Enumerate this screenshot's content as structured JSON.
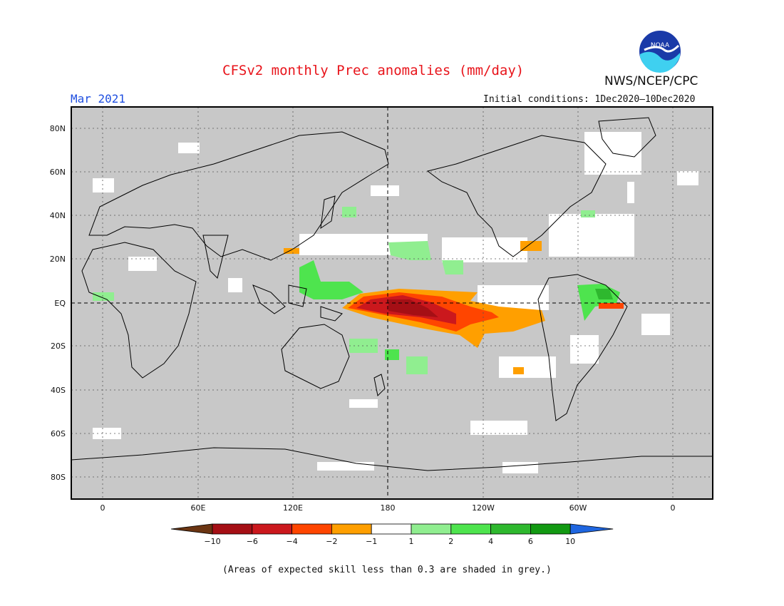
{
  "header": {
    "title": "CFSv2 monthly Prec anomalies (mm/day)",
    "month": "Mar 2021",
    "initial_conditions": "Initial conditions: 1Dec2020–10Dec2020",
    "agency": "NWS/NCEP/CPC",
    "logo_text": "NOAA"
  },
  "axes": {
    "lat_labels": [
      "80N",
      "60N",
      "40N",
      "20N",
      "EQ",
      "20S",
      "40S",
      "60S",
      "80S"
    ],
    "lon_labels": [
      "0",
      "60E",
      "120E",
      "180",
      "120W",
      "60W",
      "0"
    ]
  },
  "colorbar": {
    "labels": [
      "−10",
      "−6",
      "−4",
      "−2",
      "−1",
      "1",
      "2",
      "4",
      "6",
      "10"
    ],
    "colors": [
      "#6b3512",
      "#a50f15",
      "#cb181d",
      "#ff4500",
      "#ff9f00",
      "#ffffff",
      "#90ee90",
      "#4ee44e",
      "#2eb82e",
      "#129912",
      "#1f66e0"
    ]
  },
  "footnote": "(Areas of expected skill less than 0.3 are shaded in grey.)",
  "colors": {
    "background_grey": "#c8c8c8",
    "title_red": "#e8141b",
    "month_blue": "#1f4fe0"
  }
}
